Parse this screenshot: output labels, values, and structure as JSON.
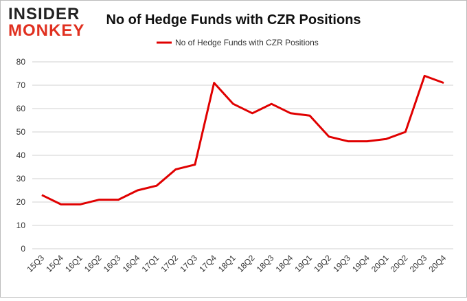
{
  "logo": {
    "line1": "INSIDER",
    "line2": "MONKEY"
  },
  "chart_data": {
    "type": "line",
    "title": "No of Hedge Funds with CZR Positions",
    "categories": [
      "15Q3",
      "15Q4",
      "16Q1",
      "16Q2",
      "16Q3",
      "16Q4",
      "17Q1",
      "17Q2",
      "17Q3",
      "17Q4",
      "18Q1",
      "18Q2",
      "18Q3",
      "18Q4",
      "19Q1",
      "19Q2",
      "19Q3",
      "19Q4",
      "20Q1",
      "20Q2",
      "20Q3",
      "20Q4"
    ],
    "series": [
      {
        "name": "No of Hedge Funds with CZR Positions",
        "color": "#e00000",
        "values": [
          23,
          19,
          19,
          21,
          21,
          25,
          27,
          34,
          36,
          71,
          62,
          58,
          62,
          58,
          57,
          48,
          46,
          46,
          47,
          50,
          74,
          71
        ]
      }
    ],
    "ylim": [
      0,
      80
    ],
    "yticks": [
      0,
      10,
      20,
      30,
      40,
      50,
      60,
      70,
      80
    ],
    "grid": true,
    "legend": "top"
  }
}
